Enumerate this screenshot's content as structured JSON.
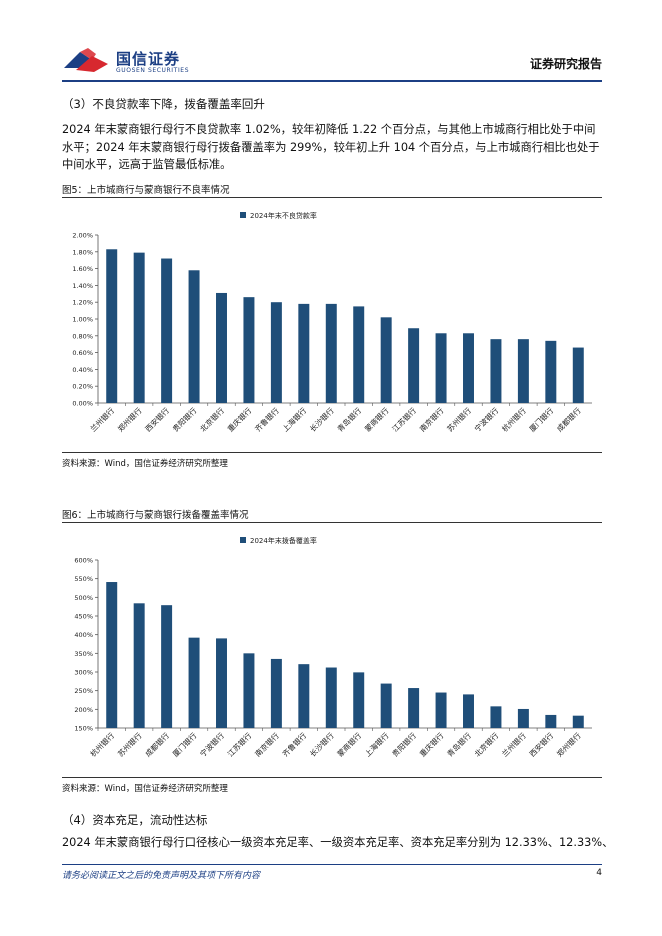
{
  "header": {
    "brand_cn": "国信证券",
    "brand_en": "GUOSEN SECURITIES",
    "report_type": "证券研究报告"
  },
  "section3": {
    "heading": "（3）不良贷款率下降，拨备覆盖率回升",
    "lines": [
      "2024 年末蒙商银行母行不良贷款率 1.02%，较年初降低 1.22 个百分点，与其他上市城商行相比处于中间",
      "水平；2024 年末蒙商银行母行拨备覆盖率为 299%，较年初上升 104 个百分点，与上市城商行相比也处于",
      "中间水平，远高于监管最低标准。"
    ]
  },
  "figure5": {
    "title": "图5：上市城商行与蒙商银行不良率情况",
    "source": "资料来源：Wind，国信证券经济研究所整理"
  },
  "figure6": {
    "title": "图6：上市城商行与蒙商银行拨备覆盖率情况",
    "source": "资料来源：Wind，国信证券经济研究所整理"
  },
  "section4": {
    "heading": "（4）资本充足，流动性达标",
    "lines": [
      "2024 年末蒙商银行母行口径核心一级资本充足率、一级资本充足率、资本充足率分别为 12.33%、12.33%、"
    ]
  },
  "footer": {
    "disclaimer": "请务必阅读正文之后的免责声明及其项下所有内容",
    "page": "4"
  },
  "colors": {
    "bar": "#1f4e79",
    "brand": "#1c3f84",
    "logo_red": "#d7282f"
  },
  "chart_data": [
    {
      "type": "bar",
      "legend": "2024年末不良贷款率",
      "legend_position": "top",
      "categories": [
        "兰州银行",
        "郑州银行",
        "西安银行",
        "贵阳银行",
        "北京银行",
        "重庆银行",
        "齐鲁银行",
        "上海银行",
        "长沙银行",
        "青岛银行",
        "蒙商银行",
        "江苏银行",
        "南京银行",
        "苏州银行",
        "宁波银行",
        "杭州银行",
        "厦门银行",
        "成都银行"
      ],
      "values": [
        1.83,
        1.79,
        1.72,
        1.58,
        1.31,
        1.26,
        1.2,
        1.18,
        1.18,
        1.15,
        1.02,
        0.89,
        0.83,
        0.83,
        0.76,
        0.76,
        0.74,
        0.66
      ],
      "ylim": [
        0,
        2.0
      ],
      "yticks": [
        "0.00%",
        "0.20%",
        "0.40%",
        "0.60%",
        "0.80%",
        "1.00%",
        "1.20%",
        "1.40%",
        "1.60%",
        "1.80%",
        "2.00%"
      ],
      "grid": false
    },
    {
      "type": "bar",
      "legend": "2024年末拨备覆盖率",
      "legend_position": "top",
      "categories": [
        "杭州银行",
        "苏州银行",
        "成都银行",
        "厦门银行",
        "宁波银行",
        "江苏银行",
        "南京银行",
        "齐鲁银行",
        "长沙银行",
        "蒙商银行",
        "上海银行",
        "贵阳银行",
        "重庆银行",
        "青岛银行",
        "北京银行",
        "兰州银行",
        "西安银行",
        "郑州银行"
      ],
      "values": [
        541,
        484,
        479,
        392,
        390,
        350,
        335,
        321,
        312,
        299,
        269,
        257,
        245,
        240,
        208,
        201,
        185,
        183
      ],
      "ylim": [
        150,
        600
      ],
      "yticks": [
        "150%",
        "200%",
        "250%",
        "300%",
        "350%",
        "400%",
        "450%",
        "500%",
        "550%",
        "600%"
      ],
      "grid": false
    }
  ]
}
